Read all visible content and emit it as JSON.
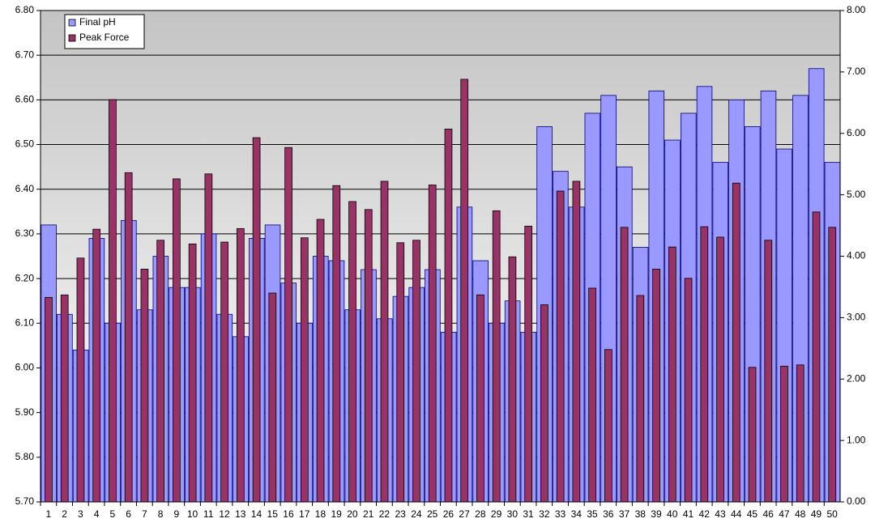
{
  "chart_data": {
    "type": "bar",
    "categories": [
      "1",
      "2",
      "3",
      "4",
      "5",
      "6",
      "7",
      "8",
      "9",
      "10",
      "11",
      "12",
      "13",
      "14",
      "15",
      "16",
      "17",
      "18",
      "19",
      "20",
      "21",
      "22",
      "23",
      "24",
      "25",
      "26",
      "27",
      "28",
      "29",
      "30",
      "31",
      "32",
      "33",
      "34",
      "35",
      "36",
      "37",
      "38",
      "39",
      "40",
      "41",
      "42",
      "43",
      "44",
      "45",
      "46",
      "47",
      "48",
      "49",
      "50"
    ],
    "series": [
      {
        "name": "Final pH",
        "color": "#9999ff",
        "axis": "y",
        "values": [
          6.32,
          6.12,
          6.04,
          6.29,
          6.1,
          6.33,
          6.13,
          6.25,
          6.18,
          6.18,
          6.3,
          6.12,
          6.07,
          6.29,
          6.32,
          6.19,
          6.1,
          6.25,
          6.24,
          6.13,
          6.22,
          6.11,
          6.16,
          6.18,
          6.22,
          6.08,
          6.36,
          6.24,
          6.1,
          6.15,
          6.08,
          6.54,
          6.44,
          6.36,
          6.57,
          6.61,
          6.45,
          6.27,
          6.62,
          6.51,
          6.57,
          6.63,
          6.46,
          6.6,
          6.54,
          6.62,
          6.49,
          6.61,
          6.67,
          6.46
        ]
      },
      {
        "name": "Peak Force",
        "color": "#993366",
        "axis": "y2",
        "values": [
          3.33,
          3.37,
          3.97,
          4.44,
          6.55,
          5.36,
          3.79,
          4.26,
          5.26,
          4.2,
          5.34,
          4.23,
          4.45,
          5.93,
          3.4,
          5.77,
          4.3,
          4.6,
          5.15,
          4.89,
          4.76,
          5.22,
          4.22,
          4.26,
          5.16,
          6.07,
          6.88,
          3.37,
          4.74,
          3.99,
          4.49,
          3.21,
          5.06,
          5.22,
          3.48,
          2.48,
          4.47,
          3.36,
          3.79,
          4.15,
          3.64,
          4.48,
          4.31,
          5.19,
          2.19,
          4.26,
          2.21,
          2.23,
          4.72,
          4.47
        ]
      }
    ],
    "ylim": [
      5.7,
      6.8
    ],
    "yticks": [
      {
        "value": 5.7,
        "label": "5.70"
      },
      {
        "value": 5.8,
        "label": "5.80"
      },
      {
        "value": 5.9,
        "label": "5.90"
      },
      {
        "value": 6.0,
        "label": "6.00"
      },
      {
        "value": 6.1,
        "label": "6.10"
      },
      {
        "value": 6.2,
        "label": "6.20"
      },
      {
        "value": 6.3,
        "label": "6.30"
      },
      {
        "value": 6.4,
        "label": "6.40"
      },
      {
        "value": 6.5,
        "label": "6.50"
      },
      {
        "value": 6.6,
        "label": "6.60"
      },
      {
        "value": 6.7,
        "label": "6.70"
      },
      {
        "value": 6.8,
        "label": "6.80"
      }
    ],
    "y2lim": [
      0,
      8
    ],
    "y2ticks": [
      {
        "value": 0,
        "label": "0.00"
      },
      {
        "value": 1,
        "label": "1.00"
      },
      {
        "value": 2,
        "label": "2.00"
      },
      {
        "value": 3,
        "label": "3.00"
      },
      {
        "value": 4,
        "label": "4.00"
      },
      {
        "value": 5,
        "label": "5.00"
      },
      {
        "value": 6,
        "label": "6.00"
      },
      {
        "value": 7,
        "label": "7.00"
      },
      {
        "value": 8,
        "label": "8.00"
      }
    ],
    "grid": true,
    "legend": "upper left"
  }
}
